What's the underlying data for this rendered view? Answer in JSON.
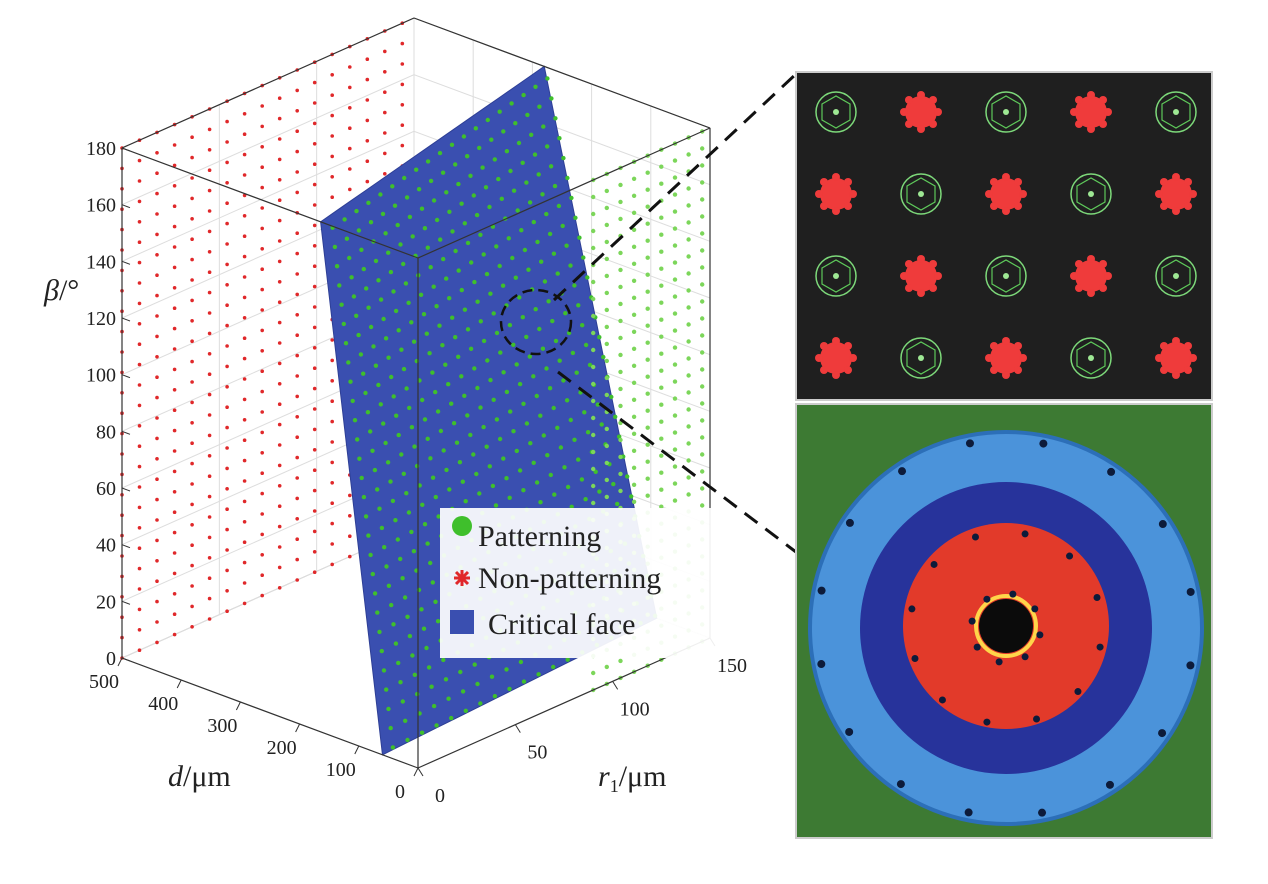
{
  "chart_data": {
    "type": "scatter",
    "subtype": "3d-scatter-with-surface",
    "axes": {
      "x": {
        "label_symbol": "d",
        "label_unit": "/μm",
        "range": [
          0,
          500
        ],
        "ticks": [
          "0",
          "100",
          "200",
          "300",
          "400",
          "500"
        ]
      },
      "y": {
        "label_symbol": "r",
        "label_sub": "1",
        "label_unit": "/μm",
        "range": [
          0,
          150
        ],
        "ticks": [
          "0",
          "50",
          "100",
          "150"
        ]
      },
      "z": {
        "label_symbol": "β",
        "label_unit": "/°",
        "range": [
          0,
          180
        ],
        "ticks": [
          "0",
          "20",
          "40",
          "60",
          "80",
          "100",
          "120",
          "140",
          "160",
          "180"
        ]
      }
    },
    "grid": true,
    "legend": {
      "placement": "bottom-right",
      "items": [
        {
          "label": "Patterning",
          "marker": "circle",
          "color": "#3fbf2c"
        },
        {
          "label": "Non-patterning",
          "marker": "asterisk",
          "color": "#e0282a"
        },
        {
          "label": "Critical face",
          "marker": "square",
          "color": "#3a4fb0"
        }
      ]
    },
    "series": [
      {
        "name": "Patterning",
        "color": "#3fbf2c",
        "region": "d < critical face"
      },
      {
        "name": "Non-patterning",
        "color": "#e0282a",
        "region": "d > critical face"
      },
      {
        "name": "Critical face",
        "color": "#3a4fb0",
        "type": "surface"
      }
    ]
  },
  "insets": {
    "microscope": {
      "rows": 4,
      "cols": 5,
      "background": "#1e1e1e",
      "pattern": [
        "green",
        "red",
        "green",
        "red",
        "green"
      ]
    },
    "simulation": {
      "background": "#3f7a35",
      "outer_ring": "#4a8fd6",
      "mid_ring": "#25309a",
      "core": "#e53628",
      "hole": "#0a0a0a"
    }
  },
  "colors": {
    "patterning": "#3fbf2c",
    "non_patterning": "#e0282a",
    "critical_face": "#3a4fb0",
    "axes": "#333333"
  }
}
